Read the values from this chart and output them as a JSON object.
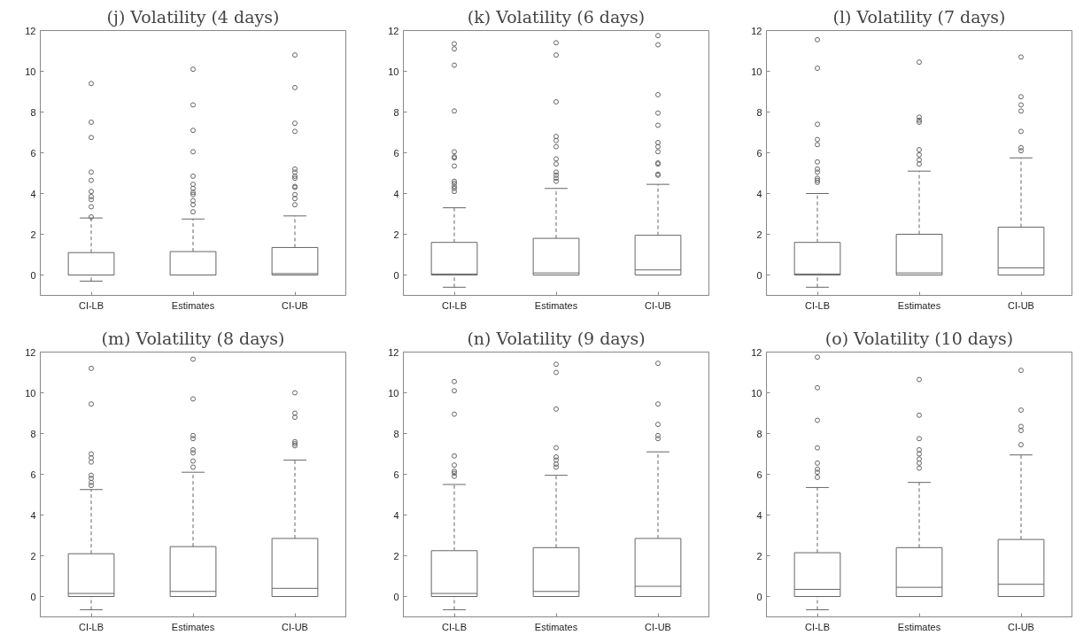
{
  "chart_data": [
    {
      "type": "box",
      "title": "(j) Volatility (4 days)",
      "categories": [
        "CI-LB",
        "Estimates",
        "CI-UB"
      ],
      "ylim": [
        -1,
        12
      ],
      "yticks": [
        0,
        2,
        4,
        6,
        8,
        10,
        12
      ],
      "grid": false,
      "color": "#666666",
      "boxes": [
        {
          "low": -0.3,
          "q1": 0,
          "median": 0,
          "q3": 1.1,
          "high": 2.8,
          "outliers": [
            9.4,
            7.5,
            6.75,
            5.05,
            4.65,
            4.1,
            3.85,
            3.7,
            3.35,
            2.85
          ]
        },
        {
          "low": 0,
          "q1": 0,
          "median": 0,
          "q3": 1.15,
          "high": 2.75,
          "outliers": [
            10.1,
            8.35,
            7.1,
            6.05,
            4.85,
            4.45,
            4.25,
            4.05,
            3.95,
            3.65,
            3.45,
            3.1
          ]
        },
        {
          "low": 0,
          "q1": 0,
          "median": 0.07,
          "q3": 1.35,
          "high": 2.9,
          "outliers": [
            10.8,
            9.2,
            7.45,
            7.05,
            5.2,
            5.05,
            4.85,
            4.75,
            4.35,
            4.3,
            3.95,
            3.75,
            3.45
          ]
        }
      ]
    },
    {
      "type": "box",
      "title": "(k) Volatility (6 days)",
      "categories": [
        "CI-LB",
        "Estimates",
        "CI-UB"
      ],
      "ylim": [
        -1,
        12
      ],
      "yticks": [
        0,
        2,
        4,
        6,
        8,
        10,
        12
      ],
      "grid": false,
      "color": "#666666",
      "boxes": [
        {
          "low": -0.6,
          "q1": 0,
          "median": 0.05,
          "q3": 1.6,
          "high": 3.3,
          "outliers": [
            11.35,
            11.1,
            10.3,
            8.05,
            6.05,
            5.8,
            5.75,
            5.35,
            4.6,
            4.5,
            4.35,
            4.25,
            4.1
          ]
        },
        {
          "low": 0,
          "q1": 0,
          "median": 0.1,
          "q3": 1.8,
          "high": 4.25,
          "outliers": [
            11.4,
            10.8,
            8.5,
            6.8,
            6.6,
            6.3,
            5.7,
            5.45,
            5.05,
            4.9,
            4.75,
            4.6
          ]
        },
        {
          "low": 0,
          "q1": 0,
          "median": 0.25,
          "q3": 1.95,
          "high": 4.45,
          "outliers": [
            11.75,
            11.3,
            8.85,
            7.95,
            7.35,
            6.5,
            6.3,
            6.05,
            5.5,
            5.45,
            4.95,
            4.9
          ]
        }
      ]
    },
    {
      "type": "box",
      "title": "(l) Volatility (7 days)",
      "categories": [
        "CI-LB",
        "Estimates",
        "CI-UB"
      ],
      "ylim": [
        -1,
        12
      ],
      "yticks": [
        0,
        2,
        4,
        6,
        8,
        10,
        12
      ],
      "grid": false,
      "color": "#666666",
      "boxes": [
        {
          "low": -0.6,
          "q1": 0,
          "median": 0.05,
          "q3": 1.6,
          "high": 4.0,
          "outliers": [
            11.55,
            10.15,
            7.4,
            6.65,
            6.4,
            5.55,
            5.2,
            5.05,
            4.75,
            4.65,
            4.55
          ]
        },
        {
          "low": 0,
          "q1": 0,
          "median": 0.1,
          "q3": 2.0,
          "high": 5.1,
          "outliers": [
            10.45,
            7.75,
            7.6,
            7.5,
            6.15,
            5.9,
            5.65,
            5.45
          ]
        },
        {
          "low": 0,
          "q1": 0,
          "median": 0.35,
          "q3": 2.35,
          "high": 5.75,
          "outliers": [
            10.7,
            8.75,
            8.35,
            8.05,
            7.05,
            6.25,
            6.1
          ]
        }
      ]
    },
    {
      "type": "box",
      "title": "(m) Volatility (8 days)",
      "categories": [
        "CI-LB",
        "Estimates",
        "CI-UB"
      ],
      "ylim": [
        -1,
        12
      ],
      "yticks": [
        0,
        2,
        4,
        6,
        8,
        10,
        12
      ],
      "grid": false,
      "color": "#666666",
      "boxes": [
        {
          "low": -0.65,
          "q1": 0,
          "median": 0.15,
          "q3": 2.1,
          "high": 5.25,
          "outliers": [
            11.2,
            9.45,
            7.0,
            6.8,
            6.6,
            5.95,
            5.8,
            5.6,
            5.45
          ]
        },
        {
          "low": 0,
          "q1": 0,
          "median": 0.25,
          "q3": 2.45,
          "high": 6.1,
          "outliers": [
            11.65,
            9.7,
            7.9,
            7.75,
            7.2,
            7.05,
            6.65,
            6.35
          ]
        },
        {
          "low": 0,
          "q1": 0,
          "median": 0.4,
          "q3": 2.85,
          "high": 6.7,
          "outliers": [
            10.0,
            9.0,
            8.8,
            7.6,
            7.5,
            7.4
          ]
        }
      ]
    },
    {
      "type": "box",
      "title": "(n) Volatility (9 days)",
      "categories": [
        "CI-LB",
        "Estimates",
        "CI-UB"
      ],
      "ylim": [
        -1,
        12
      ],
      "yticks": [
        0,
        2,
        4,
        6,
        8,
        10,
        12
      ],
      "grid": false,
      "color": "#666666",
      "boxes": [
        {
          "low": -0.65,
          "q1": 0,
          "median": 0.15,
          "q3": 2.25,
          "high": 5.5,
          "outliers": [
            10.55,
            10.1,
            8.95,
            6.9,
            6.45,
            6.15,
            6.05,
            5.9
          ]
        },
        {
          "low": 0,
          "q1": 0,
          "median": 0.25,
          "q3": 2.4,
          "high": 5.95,
          "outliers": [
            11.4,
            11.0,
            9.2,
            7.3,
            6.85,
            6.7,
            6.5,
            6.35
          ]
        },
        {
          "low": 0,
          "q1": 0,
          "median": 0.5,
          "q3": 2.85,
          "high": 7.1,
          "outliers": [
            11.45,
            9.45,
            8.45,
            7.9,
            7.75
          ]
        }
      ]
    },
    {
      "type": "box",
      "title": "(o) Volatility (10 days)",
      "categories": [
        "CI-LB",
        "Estimates",
        "CI-UB"
      ],
      "ylim": [
        -1,
        12
      ],
      "yticks": [
        0,
        2,
        4,
        6,
        8,
        10,
        12
      ],
      "grid": false,
      "color": "#666666",
      "boxes": [
        {
          "low": -0.65,
          "q1": 0,
          "median": 0.35,
          "q3": 2.15,
          "high": 5.35,
          "outliers": [
            11.75,
            10.25,
            8.65,
            7.3,
            6.55,
            6.25,
            6.1,
            5.85
          ]
        },
        {
          "low": 0,
          "q1": 0,
          "median": 0.45,
          "q3": 2.4,
          "high": 5.6,
          "outliers": [
            10.65,
            8.9,
            7.75,
            7.2,
            7.0,
            6.75,
            6.55,
            6.3
          ]
        },
        {
          "low": 0,
          "q1": 0,
          "median": 0.6,
          "q3": 2.8,
          "high": 6.95,
          "outliers": [
            11.1,
            9.15,
            8.35,
            8.15,
            7.45
          ]
        }
      ]
    }
  ]
}
